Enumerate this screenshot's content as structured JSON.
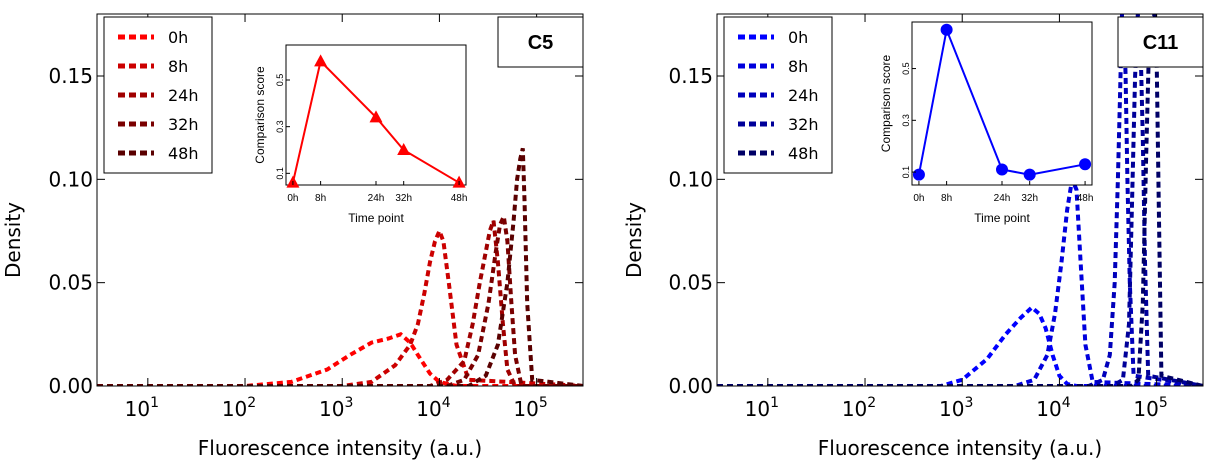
{
  "chart_data": [
    {
      "type": "line",
      "panel_label": "C5",
      "xlabel": "Fluorescence intensity (a.u.)",
      "ylabel": "Density",
      "xscale": "log",
      "xlim": [
        3,
        300000
      ],
      "ylim": [
        0,
        0.18
      ],
      "x_ticks": [
        {
          "value": 10,
          "base": "10",
          "exp": "1"
        },
        {
          "value": 100,
          "base": "10",
          "exp": "2"
        },
        {
          "value": 1000,
          "base": "10",
          "exp": "3"
        },
        {
          "value": 10000,
          "base": "10",
          "exp": "4"
        },
        {
          "value": 100000,
          "base": "10",
          "exp": "5"
        }
      ],
      "y_ticks": [
        {
          "value": 0.0,
          "label": "0.00"
        },
        {
          "value": 0.05,
          "label": "0.05"
        },
        {
          "value": 0.1,
          "label": "0.10"
        },
        {
          "value": 0.15,
          "label": "0.15"
        }
      ],
      "legend_position": "top-left",
      "line_style": "dashed",
      "series": [
        {
          "name": "0h",
          "color": "#ff0000",
          "x": [
            3,
            100,
            300,
            700,
            1200,
            2000,
            3000,
            4000,
            5000,
            6000,
            8000,
            10000,
            15000,
            30000,
            300000
          ],
          "y": [
            0,
            0,
            0.002,
            0.008,
            0.015,
            0.021,
            0.023,
            0.025,
            0.021,
            0.015,
            0.006,
            0.002,
            0,
            0,
            0
          ]
        },
        {
          "name": "8h",
          "color": "#cc0000",
          "x": [
            3,
            1000,
            2000,
            3500,
            5000,
            6000,
            7000,
            8000,
            9000,
            10000,
            11000,
            12500,
            15000,
            20000,
            300000
          ],
          "y": [
            0,
            0,
            0.002,
            0.01,
            0.02,
            0.03,
            0.045,
            0.06,
            0.07,
            0.075,
            0.07,
            0.05,
            0.02,
            0.003,
            0
          ]
        },
        {
          "name": "24h",
          "color": "#a00000",
          "x": [
            3,
            8000,
            12000,
            18000,
            22000,
            26000,
            30000,
            33000,
            36000,
            40000,
            45000,
            50000,
            60000,
            300000
          ],
          "y": [
            0,
            0,
            0.003,
            0.012,
            0.03,
            0.05,
            0.065,
            0.075,
            0.08,
            0.06,
            0.03,
            0.008,
            0,
            0
          ]
        },
        {
          "name": "32h",
          "color": "#7a0000",
          "x": [
            3,
            12000,
            18000,
            25000,
            32000,
            38000,
            42000,
            46000,
            50000,
            55000,
            60000,
            70000,
            300000
          ],
          "y": [
            0,
            0,
            0.003,
            0.015,
            0.04,
            0.065,
            0.078,
            0.082,
            0.07,
            0.04,
            0.015,
            0,
            0
          ]
        },
        {
          "name": "48h",
          "color": "#5a0000",
          "x": [
            3,
            20000,
            30000,
            40000,
            50000,
            58000,
            63000,
            68000,
            72000,
            75000,
            80000,
            90000,
            300000
          ],
          "y": [
            0,
            0,
            0.005,
            0.02,
            0.05,
            0.08,
            0.1,
            0.11,
            0.115,
            0.09,
            0.04,
            0.003,
            0
          ]
        }
      ],
      "inset": {
        "type": "line",
        "xlabel": "Time point",
        "ylabel": "Comparison score",
        "marker": "triangle",
        "color": "#ff0000",
        "categories": [
          "0h",
          "8h",
          "24h",
          "32h",
          "48h"
        ],
        "x": [
          0,
          8,
          24,
          32,
          48
        ],
        "values": [
          0.06,
          0.58,
          0.34,
          0.2,
          0.06
        ],
        "ylim": [
          0.05,
          0.65
        ],
        "y_ticks": [
          "0.1",
          "0.3",
          "0.5"
        ]
      }
    },
    {
      "type": "line",
      "panel_label": "C11",
      "xlabel": "Fluorescence intensity (a.u.)",
      "ylabel": "Density",
      "xscale": "log",
      "xlim": [
        3,
        300000
      ],
      "ylim": [
        0,
        0.18
      ],
      "x_ticks": [
        {
          "value": 10,
          "base": "10",
          "exp": "1"
        },
        {
          "value": 100,
          "base": "10",
          "exp": "2"
        },
        {
          "value": 1000,
          "base": "10",
          "exp": "3"
        },
        {
          "value": 10000,
          "base": "10",
          "exp": "4"
        },
        {
          "value": 100000,
          "base": "10",
          "exp": "5"
        }
      ],
      "y_ticks": [
        {
          "value": 0.0,
          "label": "0.00"
        },
        {
          "value": 0.05,
          "label": "0.05"
        },
        {
          "value": 0.1,
          "label": "0.10"
        },
        {
          "value": 0.15,
          "label": "0.15"
        }
      ],
      "legend_position": "top-left",
      "line_style": "dashed",
      "series": [
        {
          "name": "0h",
          "color": "#0000ff",
          "x": [
            3,
            600,
            1000,
            1800,
            2800,
            4000,
            5200,
            6200,
            7200,
            8500,
            10000,
            12000,
            15000,
            300000
          ],
          "y": [
            0,
            0,
            0.003,
            0.013,
            0.025,
            0.033,
            0.038,
            0.035,
            0.028,
            0.015,
            0.005,
            0.001,
            0,
            0
          ]
        },
        {
          "name": "8h",
          "color": "#0000dd",
          "x": [
            3,
            3500,
            5500,
            7500,
            9000,
            10500,
            12000,
            13500,
            15000,
            16500,
            18500,
            22000,
            300000
          ],
          "y": [
            0,
            0,
            0.003,
            0.015,
            0.035,
            0.06,
            0.085,
            0.1,
            0.095,
            0.06,
            0.02,
            0.002,
            0
          ]
        },
        {
          "name": "24h",
          "color": "#0000bb",
          "x": [
            3,
            20000,
            28000,
            33000,
            37000,
            40000,
            42000,
            44000,
            46000,
            48000,
            50000,
            53000,
            58000,
            300000
          ],
          "y": [
            0,
            0,
            0.003,
            0.015,
            0.05,
            0.1,
            0.14,
            0.18,
            0.18,
            0.15,
            0.1,
            0.05,
            0.005,
            0
          ]
        },
        {
          "name": "32h",
          "color": "#000099",
          "x": [
            3,
            35000,
            45000,
            52000,
            56000,
            60000,
            64000,
            68000,
            72000,
            76000,
            82000,
            300000
          ],
          "y": [
            0,
            0,
            0.003,
            0.03,
            0.09,
            0.15,
            0.18,
            0.17,
            0.12,
            0.06,
            0.005,
            0
          ]
        },
        {
          "name": "48h",
          "color": "#000066",
          "x": [
            3,
            55000,
            65000,
            72000,
            78000,
            84000,
            90000,
            95000,
            100000,
            105000,
            112000,
            300000
          ],
          "y": [
            0,
            0,
            0.003,
            0.04,
            0.11,
            0.17,
            0.18,
            0.18,
            0.16,
            0.09,
            0.005,
            0
          ]
        }
      ],
      "inset": {
        "type": "line",
        "xlabel": "Time point",
        "ylabel": "Comparison score",
        "marker": "circle",
        "color": "#0000ff",
        "categories": [
          "0h",
          "8h",
          "24h",
          "32h",
          "48h"
        ],
        "x": [
          0,
          8,
          24,
          32,
          48
        ],
        "values": [
          0.09,
          0.65,
          0.11,
          0.09,
          0.13
        ],
        "ylim": [
          0.05,
          0.68
        ],
        "y_ticks": [
          "0.1",
          "0.3",
          "0.5"
        ]
      }
    }
  ]
}
